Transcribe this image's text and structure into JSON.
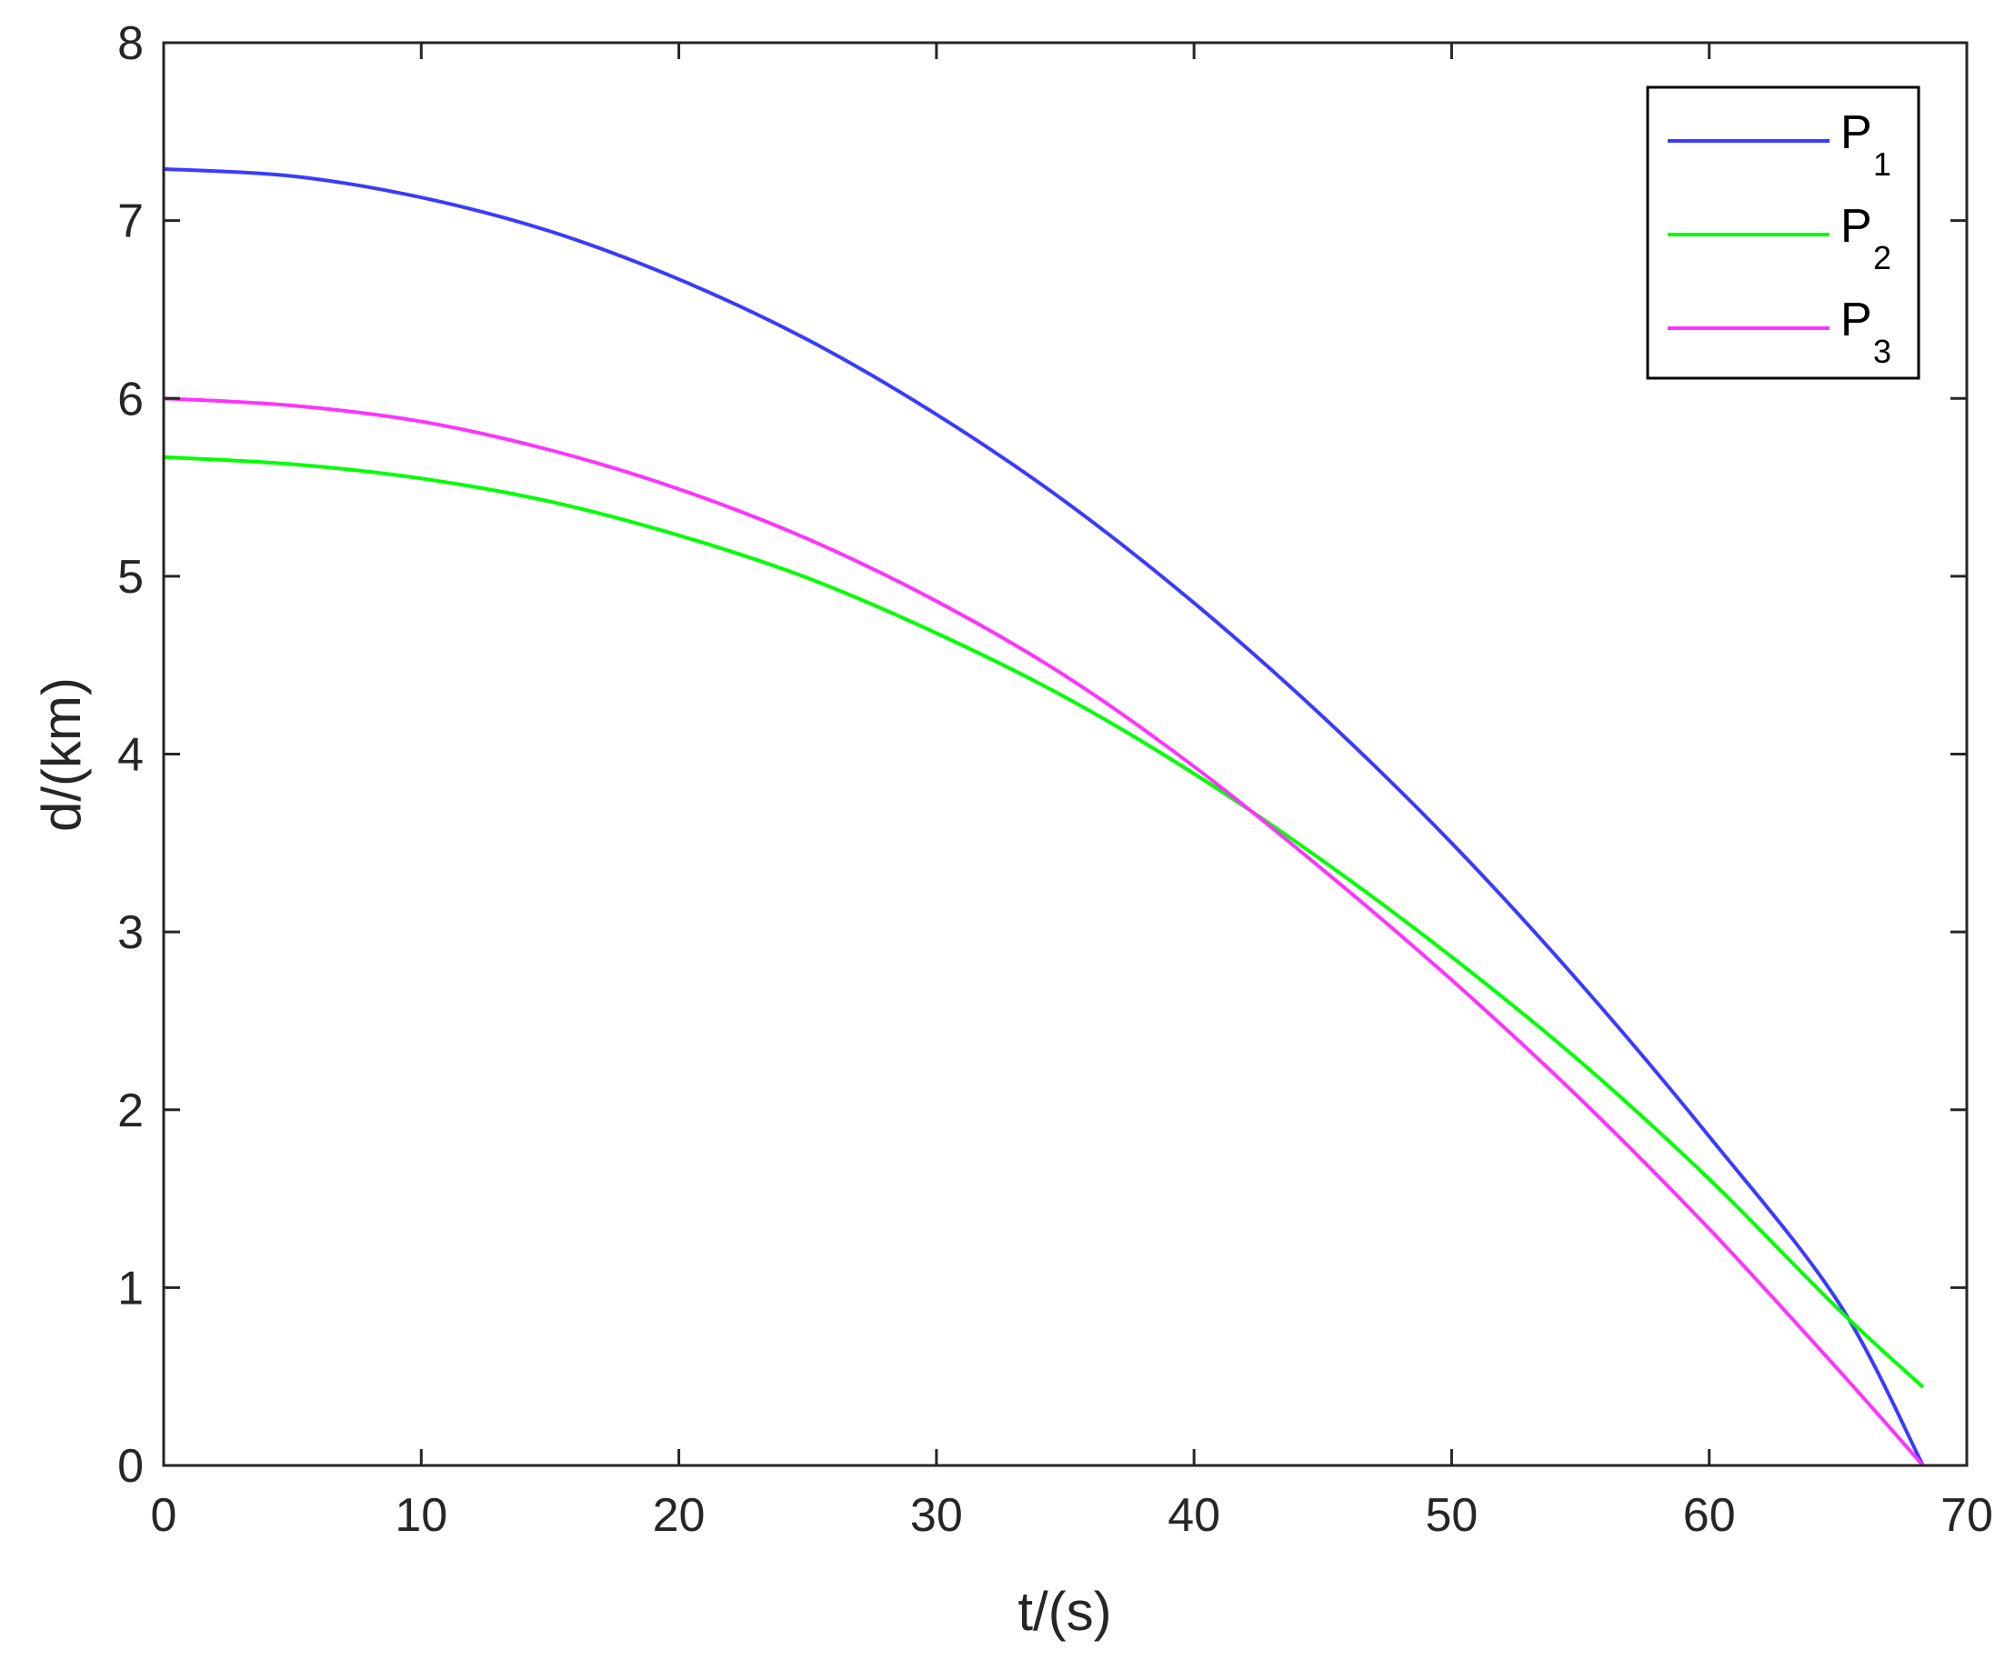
{
  "chart_data": {
    "type": "line",
    "title": "",
    "xlabel": "t/(s)",
    "ylabel": "d/(km)",
    "xlim": [
      0,
      70
    ],
    "ylim": [
      0,
      8
    ],
    "xticks": [
      0,
      10,
      20,
      30,
      40,
      50,
      60,
      70
    ],
    "yticks": [
      0,
      1,
      2,
      3,
      4,
      5,
      6,
      7,
      8
    ],
    "grid": false,
    "legend_position": "top-right",
    "series": [
      {
        "name": "P",
        "subscript": "1",
        "color": "#3b3bff",
        "x": [
          0,
          5,
          10,
          15,
          20,
          25,
          30,
          35,
          40,
          45,
          50,
          55,
          60,
          65,
          68.3
        ],
        "y": [
          7.29,
          7.25,
          7.13,
          6.94,
          6.67,
          6.33,
          5.91,
          5.42,
          4.85,
          4.21,
          3.5,
          2.71,
          1.85,
          0.92,
          0.0
        ]
      },
      {
        "name": "P",
        "subscript": "2",
        "color": "#00ff00",
        "x": [
          0,
          5,
          10,
          15,
          20,
          25,
          30,
          35,
          40,
          45,
          50,
          55,
          60,
          65,
          68.3
        ],
        "y": [
          5.67,
          5.63,
          5.55,
          5.42,
          5.23,
          4.99,
          4.68,
          4.32,
          3.89,
          3.4,
          2.86,
          2.27,
          1.61,
          0.88,
          0.44
        ]
      },
      {
        "name": "P",
        "subscript": "3",
        "color": "#ff33ff",
        "x": [
          0,
          5,
          10,
          15,
          20,
          25,
          30,
          35,
          40,
          45,
          50,
          55,
          60,
          65,
          68.3
        ],
        "y": [
          6.0,
          5.96,
          5.87,
          5.71,
          5.49,
          5.21,
          4.86,
          4.44,
          3.93,
          3.35,
          2.73,
          2.06,
          1.33,
          0.54,
          0.0
        ]
      }
    ]
  }
}
